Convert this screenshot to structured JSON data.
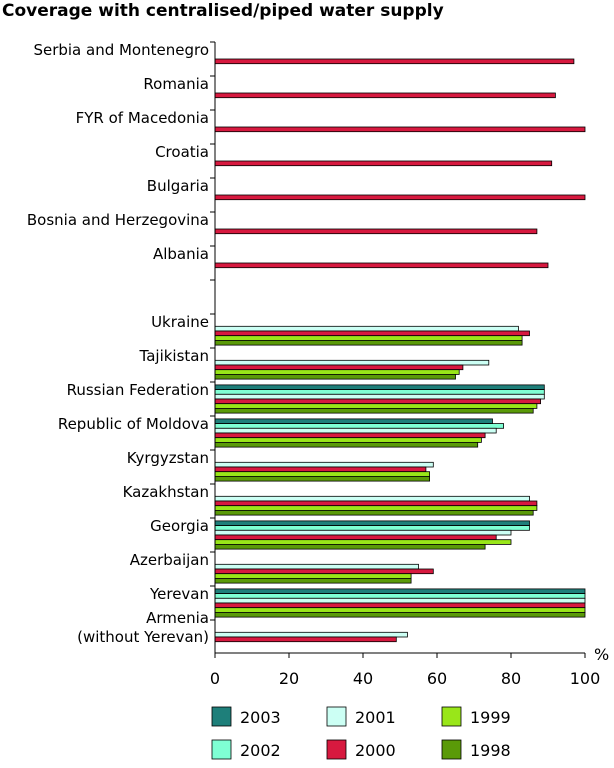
{
  "chart_data": {
    "type": "bar",
    "orientation": "horizontal",
    "title": "Coverage with centralised/piped water supply",
    "unit_label": "%",
    "xlim": [
      0,
      100
    ],
    "x_ticks": [
      "0",
      "20",
      "40",
      "60",
      "80",
      "100"
    ],
    "grid": false,
    "legend_position": "bottom",
    "series": [
      {
        "name": "2003",
        "color": "#1e7f7a"
      },
      {
        "name": "2002",
        "color": "#7fffd4"
      },
      {
        "name": "2001",
        "color": "#ccfff4"
      },
      {
        "name": "2000",
        "color": "#d7193f"
      },
      {
        "name": "1999",
        "color": "#99e619"
      },
      {
        "name": "1998",
        "color": "#5a9a08"
      }
    ],
    "categories": [
      {
        "label": "Serbia and Montenegro",
        "values": [
          null,
          null,
          null,
          97,
          null,
          null
        ]
      },
      {
        "label": "Romania",
        "values": [
          null,
          null,
          null,
          92,
          null,
          null
        ]
      },
      {
        "label": "FYR of Macedonia",
        "values": [
          null,
          null,
          null,
          100,
          null,
          null
        ]
      },
      {
        "label": "Croatia",
        "values": [
          null,
          null,
          null,
          91,
          null,
          null
        ]
      },
      {
        "label": "Bulgaria",
        "values": [
          null,
          null,
          null,
          100,
          null,
          null
        ]
      },
      {
        "label": "Bosnia and Herzegovina",
        "values": [
          null,
          null,
          null,
          87,
          null,
          null
        ]
      },
      {
        "label": "Albania",
        "values": [
          null,
          null,
          null,
          90,
          null,
          null
        ]
      },
      {
        "label": "Ukraine",
        "values": [
          null,
          null,
          82,
          85,
          83,
          83
        ]
      },
      {
        "label": "Tajikistan",
        "values": [
          null,
          null,
          74,
          67,
          66,
          65
        ]
      },
      {
        "label": "Russian Federation",
        "values": [
          89,
          89,
          89,
          88,
          87,
          86
        ]
      },
      {
        "label": "Republic of Moldova",
        "values": [
          75,
          78,
          76,
          73,
          72,
          71
        ]
      },
      {
        "label": "Kyrgyzstan",
        "values": [
          null,
          null,
          59,
          57,
          58,
          58
        ]
      },
      {
        "label": "Kazakhstan",
        "values": [
          null,
          null,
          85,
          87,
          87,
          86
        ]
      },
      {
        "label": "Georgia",
        "values": [
          85,
          85,
          80,
          76,
          80,
          73
        ]
      },
      {
        "label": "Azerbaijan",
        "values": [
          null,
          null,
          55,
          59,
          53,
          53
        ]
      },
      {
        "label": "Yerevan",
        "values": [
          100,
          100,
          100,
          100,
          100,
          100
        ]
      },
      {
        "label": "Armenia\n(without Yerevan)",
        "values": [
          null,
          null,
          52,
          49,
          null,
          null
        ]
      }
    ]
  }
}
